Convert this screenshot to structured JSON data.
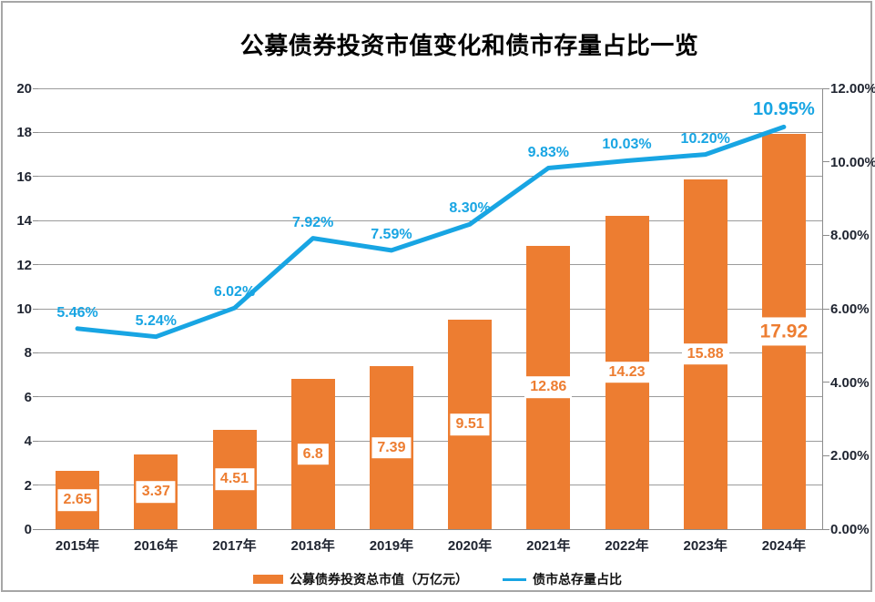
{
  "title": "公募债券投资市值变化和债市存量占比一览",
  "chart_data": {
    "type": "combo-bar-line",
    "categories": [
      "2015年",
      "2016年",
      "2017年",
      "2018年",
      "2019年",
      "2020年",
      "2021年",
      "2022年",
      "2023年",
      "2024年"
    ],
    "series": [
      {
        "name": "公募债券投资总市值（万亿元）",
        "type": "bar",
        "axis": "left",
        "color": "#ED7D31",
        "values": [
          2.65,
          3.37,
          4.51,
          6.8,
          7.39,
          9.51,
          12.86,
          14.23,
          15.88,
          17.92
        ],
        "data_labels": [
          "2.65",
          "3.37",
          "4.51",
          "6.8",
          "7.39",
          "9.51",
          "12.86",
          "14.23",
          "15.88",
          "17.92"
        ]
      },
      {
        "name": "债市总存量占比",
        "type": "line",
        "axis": "right",
        "color": "#18A5E3",
        "values": [
          5.46,
          5.24,
          6.02,
          7.92,
          7.59,
          8.3,
          9.83,
          10.03,
          10.2,
          10.95
        ],
        "data_labels": [
          "5.46%",
          "5.24%",
          "6.02%",
          "7.92%",
          "7.59%",
          "8.30%",
          "9.83%",
          "10.03%",
          "10.20%",
          "10.95%"
        ]
      }
    ],
    "left_axis": {
      "min": 0,
      "max": 20,
      "step": 2,
      "tick_labels": [
        "0",
        "2",
        "4",
        "6",
        "8",
        "10",
        "12",
        "14",
        "16",
        "18",
        "20"
      ]
    },
    "right_axis": {
      "min": 0,
      "max": 12,
      "step": 2,
      "tick_labels": [
        "0.00%",
        "2.00%",
        "4.00%",
        "6.00%",
        "8.00%",
        "10.00%",
        "12.00%"
      ]
    },
    "grid": true,
    "legend_position": "bottom",
    "legend": [
      "公募债券投资总市值（万亿元）",
      "债市总存量占比"
    ]
  },
  "colors": {
    "bar": "#ED7D31",
    "line": "#18A5E3",
    "grid": "#9B9B9B",
    "axis_text": "#1F2430",
    "frame_border": "#A6A6A6",
    "background": "#FFFFFF",
    "title_text": "#000000"
  }
}
